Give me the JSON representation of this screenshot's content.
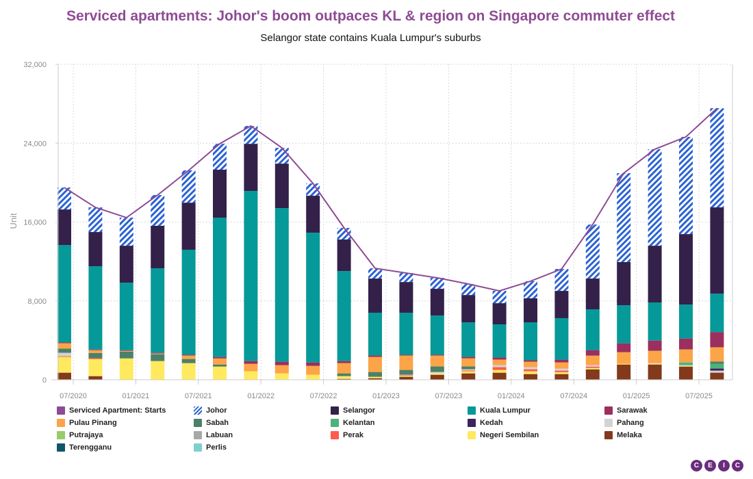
{
  "title": "Serviced apartments: Johor's boom outpaces KL & region on Singapore commuter effect",
  "subtitle": "Selangor state contains Kuala Lumpur's suburbs",
  "logo": "CEIC",
  "chart_data": {
    "type": "bar",
    "stacked": true,
    "ylabel": "Unit",
    "ylim": [
      0,
      32000
    ],
    "yticks": [
      "0",
      "8,000",
      "16,000",
      "24,000",
      "32,000"
    ],
    "xticks": [
      "07/2020",
      "01/2021",
      "07/2021",
      "01/2022",
      "07/2022",
      "01/2023",
      "07/2023",
      "01/2024",
      "07/2024",
      "01/2025",
      "07/2025"
    ],
    "grid": true,
    "legend_position": "bottom",
    "categories": [
      "06/2020",
      "09/2020",
      "12/2020",
      "03/2021",
      "06/2021",
      "09/2021",
      "12/2021",
      "03/2022",
      "06/2022",
      "09/2022",
      "12/2022",
      "03/2023",
      "06/2023",
      "09/2023",
      "12/2023",
      "03/2024",
      "06/2024",
      "09/2024",
      "12/2024",
      "03/2025",
      "06/2025",
      "09/2025"
    ],
    "line": {
      "name": "Serviced Apartment: Starts",
      "color": "#8e4b94",
      "values": [
        19500,
        17490,
        16450,
        18740,
        21240,
        23940,
        25750,
        23530,
        19920,
        15410,
        11310,
        10830,
        10340,
        9720,
        9020,
        10000,
        11240,
        15750,
        20960,
        23390,
        24640,
        27550
      ]
    },
    "series": [
      {
        "name": "Melaka",
        "color": "#83391c",
        "values": [
          720,
          370,
          0,
          0,
          0,
          0,
          0,
          0,
          0,
          90,
          160,
          300,
          510,
          650,
          720,
          580,
          580,
          1060,
          1550,
          1550,
          1340,
          720
        ]
      },
      {
        "name": "Terengganu",
        "color": "#0e5668",
        "values": [
          0,
          0,
          0,
          0,
          0,
          0,
          0,
          0,
          0,
          0,
          0,
          0,
          0,
          0,
          0,
          0,
          0,
          0,
          0,
          0,
          0,
          0
        ]
      },
      {
        "name": "Perlis",
        "color": "#7fcfcf",
        "values": [
          0,
          0,
          0,
          0,
          0,
          0,
          0,
          0,
          0,
          0,
          0,
          0,
          0,
          0,
          0,
          0,
          0,
          0,
          0,
          0,
          0,
          0
        ]
      },
      {
        "name": "Negeri Sembilan",
        "color": "#ffe95e",
        "values": [
          1600,
          1730,
          2170,
          1900,
          1690,
          1340,
          860,
          650,
          510,
          280,
          140,
          90,
          140,
          210,
          280,
          280,
          190,
          140,
          70,
          70,
          70,
          0
        ]
      },
      {
        "name": "Perak",
        "color": "#ff5a4e",
        "values": [
          70,
          90,
          0,
          0,
          0,
          0,
          0,
          0,
          0,
          0,
          0,
          70,
          0,
          90,
          280,
          210,
          160,
          140,
          0,
          0,
          0,
          0
        ]
      },
      {
        "name": "Labuan",
        "color": "#a8a8a8",
        "values": [
          0,
          0,
          0,
          0,
          0,
          0,
          0,
          0,
          0,
          0,
          0,
          0,
          0,
          0,
          0,
          0,
          0,
          0,
          0,
          0,
          0,
          0
        ]
      },
      {
        "name": "Putrajaya",
        "color": "#9acb6a",
        "values": [
          0,
          0,
          0,
          0,
          0,
          0,
          0,
          0,
          0,
          0,
          0,
          0,
          0,
          0,
          0,
          0,
          0,
          0,
          0,
          0,
          0,
          0
        ]
      },
      {
        "name": "Pahang",
        "color": "#d3d3d3",
        "values": [
          350,
          0,
          0,
          0,
          0,
          0,
          0,
          0,
          0,
          0,
          0,
          50,
          140,
          120,
          210,
          210,
          210,
          140,
          0,
          70,
          70,
          210
        ]
      },
      {
        "name": "Kedah",
        "color": "#3f2360",
        "values": [
          0,
          0,
          0,
          0,
          0,
          0,
          0,
          0,
          0,
          0,
          0,
          0,
          0,
          0,
          0,
          0,
          0,
          0,
          0,
          0,
          0,
          210
        ]
      },
      {
        "name": "Kelantan",
        "color": "#4db37a",
        "values": [
          0,
          0,
          0,
          0,
          0,
          0,
          0,
          0,
          0,
          0,
          0,
          0,
          0,
          0,
          0,
          0,
          0,
          0,
          0,
          0,
          280,
          490
        ]
      },
      {
        "name": "Sabah",
        "color": "#4c8068",
        "values": [
          420,
          530,
          690,
          690,
          420,
          210,
          0,
          0,
          0,
          280,
          490,
          490,
          560,
          280,
          0,
          0,
          0,
          0,
          0,
          0,
          0,
          210
        ]
      },
      {
        "name": "Pulau Pinang",
        "color": "#fca448",
        "values": [
          550,
          280,
          70,
          70,
          350,
          620,
          760,
          830,
          900,
          1040,
          1530,
          1460,
          1110,
          830,
          560,
          560,
          620,
          970,
          1180,
          1250,
          1320,
          1460
        ]
      },
      {
        "name": "Sarawak",
        "color": "#9b2f5e",
        "values": [
          70,
          70,
          70,
          70,
          70,
          140,
          280,
          350,
          350,
          210,
          140,
          70,
          70,
          140,
          210,
          140,
          280,
          560,
          900,
          1040,
          1110,
          1530
        ]
      },
      {
        "name": "Kuala Lumpur",
        "color": "#069999",
        "values": [
          9890,
          8450,
          6850,
          8580,
          10660,
          14140,
          17250,
          15590,
          13160,
          9130,
          4340,
          4270,
          3990,
          3500,
          3360,
          3850,
          4210,
          4140,
          3860,
          3860,
          3440,
          3910
        ]
      },
      {
        "name": "Selangor",
        "color": "#33214a",
        "values": [
          3610,
          3470,
          3750,
          4310,
          4780,
          4860,
          4790,
          4510,
          3750,
          3200,
          3470,
          3120,
          2710,
          2780,
          2150,
          2430,
          2770,
          3120,
          4380,
          5760,
          7150,
          8750
        ]
      },
      {
        "name": "Johor",
        "color": "#2a62d4",
        "pattern": "hatched",
        "values": [
          2220,
          2500,
          2850,
          3120,
          3270,
          2630,
          1810,
          1600,
          1250,
          1180,
          1040,
          910,
          1110,
          1110,
          1250,
          1740,
          2220,
          5480,
          9020,
          9790,
          9860,
          10060
        ]
      }
    ],
    "legend": [
      "Serviced Apartment: Starts",
      "Johor",
      "Selangor",
      "Kuala Lumpur",
      "Sarawak",
      "Pulau Pinang",
      "Sabah",
      "Kelantan",
      "Kedah",
      "Pahang",
      "Putrajaya",
      "Labuan",
      "Perak",
      "Negeri Sembilan",
      "Melaka",
      "Terengganu",
      "Perlis"
    ]
  }
}
